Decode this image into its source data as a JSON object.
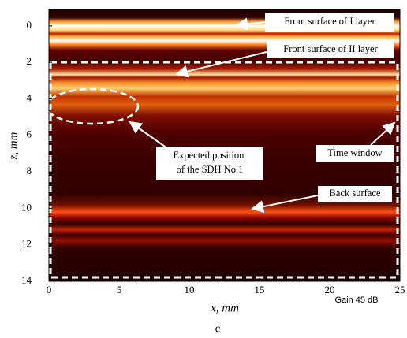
{
  "chart_data": {
    "type": "image",
    "xlabel": "x, mm",
    "ylabel": "z, mm",
    "xlim": [
      0,
      25
    ],
    "ylim": [
      -0.9,
      14
    ],
    "xticks": [
      0,
      5,
      10,
      15,
      20,
      25
    ],
    "yticks": [
      0,
      2,
      4,
      6,
      8,
      10,
      12,
      14
    ],
    "annotations": [
      "Front surface of I layer",
      "Front surface of II layer",
      [
        "Expected position",
        "of the SDH No.1"
      ],
      "Time window",
      "Back surface"
    ],
    "note": "Gain 45 dB",
    "caption": "c"
  }
}
